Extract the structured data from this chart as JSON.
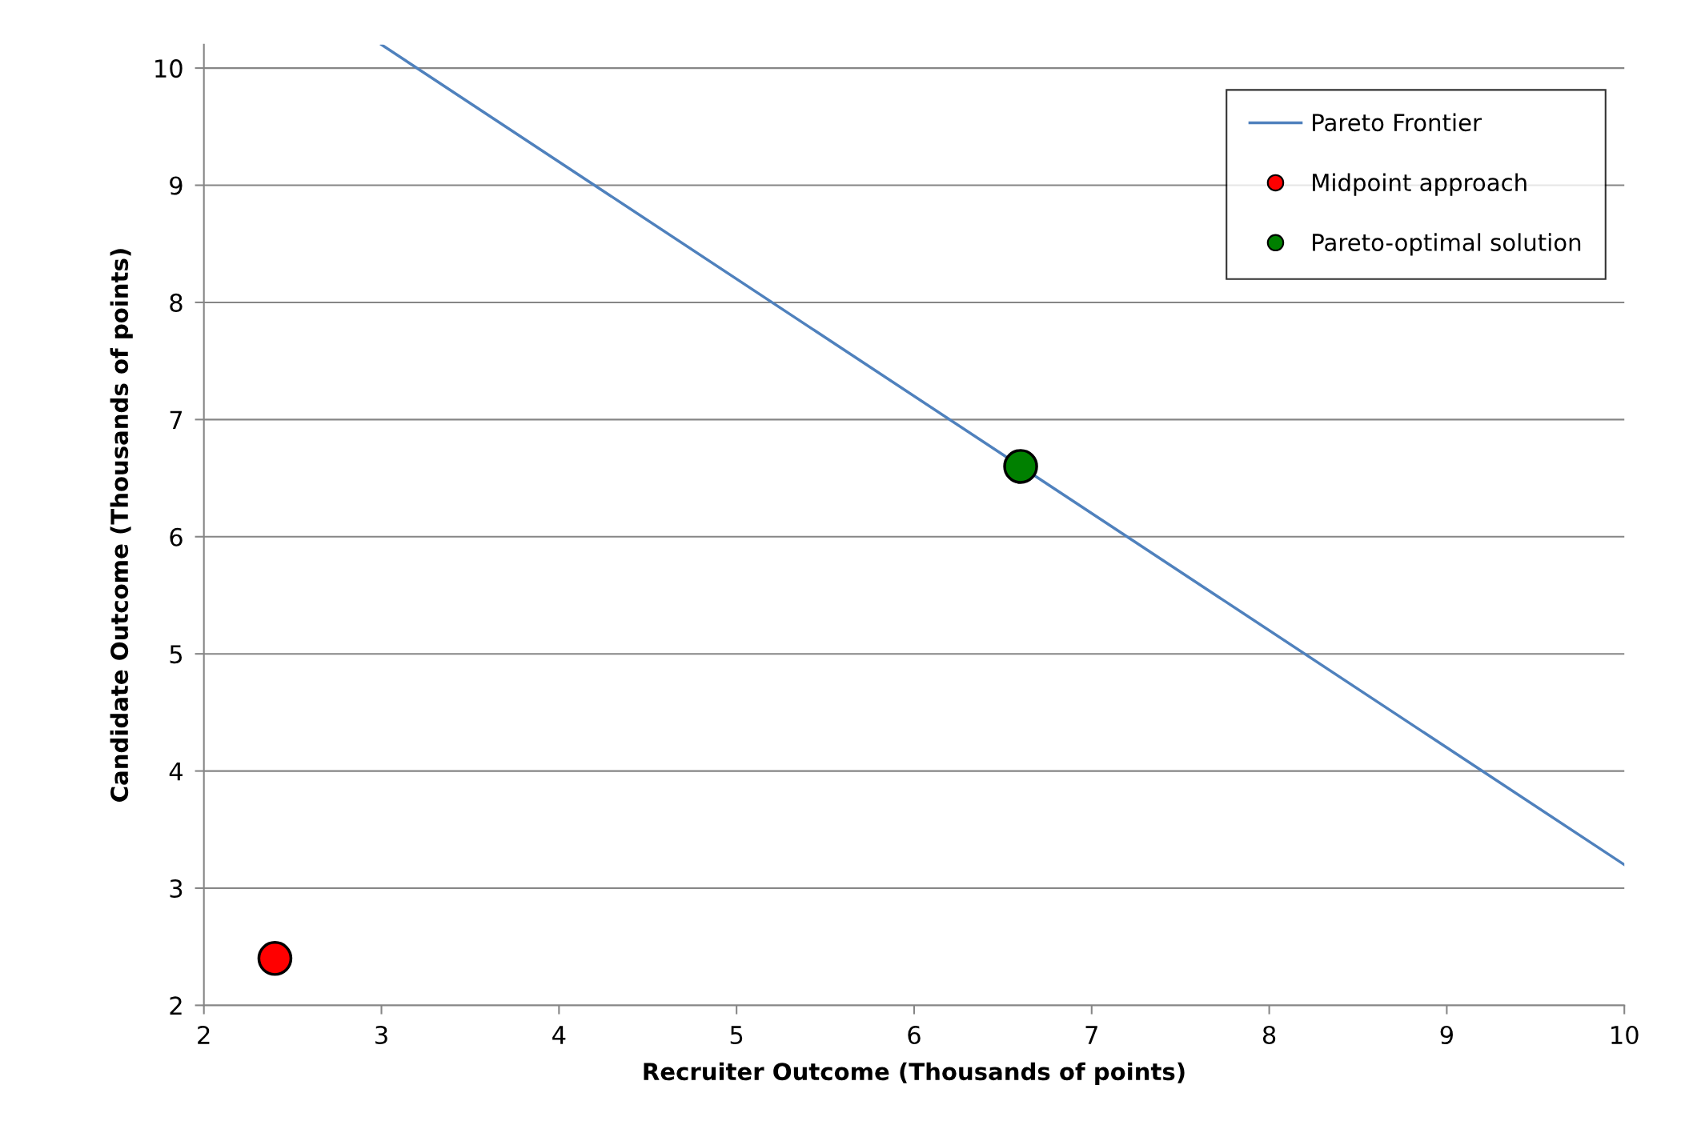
{
  "chart_data": {
    "type": "scatter",
    "xlabel": "Recruiter Outcome (Thousands of points)",
    "ylabel": "Candidate Outcome (Thousands of points)",
    "xlim": [
      2,
      10
    ],
    "ylim": [
      2,
      10.2
    ],
    "xticks": [
      2,
      3,
      4,
      5,
      6,
      7,
      8,
      9,
      10
    ],
    "yticks": [
      2,
      3,
      4,
      5,
      6,
      7,
      8,
      9,
      10
    ],
    "grid": "y",
    "legend": "top right",
    "marker": "circle",
    "series": [
      {
        "name": "Pareto Frontier",
        "type": "line",
        "color": "#4f81bd",
        "x": [
          3,
          10
        ],
        "values": [
          10.2,
          3.2
        ],
        "marker": "none"
      },
      {
        "name": "Midpoint approach",
        "color": "#ff0000",
        "x": [
          2.4
        ],
        "values": [
          2.4
        ]
      },
      {
        "name": "Pareto-optimal solution",
        "color": "#008000",
        "x": [
          6.6
        ],
        "values": [
          6.6
        ]
      }
    ]
  }
}
